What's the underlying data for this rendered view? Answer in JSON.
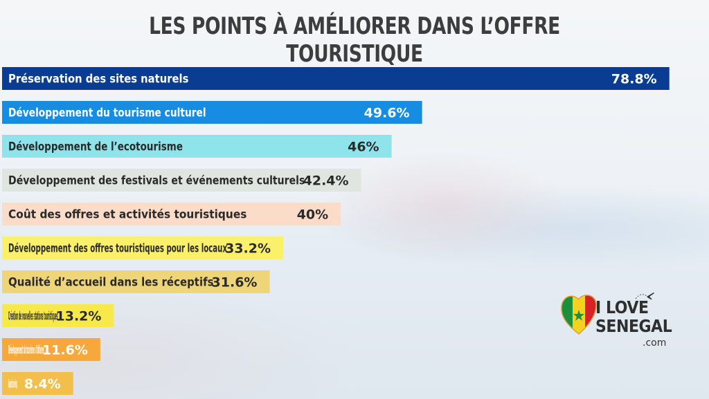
{
  "chart_data": {
    "type": "bar",
    "orientation": "horizontal",
    "title": "LES POINTS À AMÉLIORER DANS L’OFFRE TOURISTIQUE",
    "unit": "%",
    "xlim": [
      0,
      100
    ],
    "bars": [
      {
        "label": "Préservation des sites naturels",
        "value": 78.8,
        "display": "78.8%",
        "color": "#0a3d91",
        "text_color": "#ffffff"
      },
      {
        "label": "Développement du tourisme culturel",
        "value": 49.6,
        "display": "49.6%",
        "color": "#168de3",
        "text_color": "#ffffff"
      },
      {
        "label": "Développement de l’ecotourisme",
        "value": 46,
        "display": "46%",
        "color": "#8fe3ea",
        "text_color": "#2a2a2a"
      },
      {
        "label": "Développement des festivals et événements culturels",
        "value": 42.4,
        "display": "42.4%",
        "color": "#e0e6df",
        "text_color": "#2a2a2a"
      },
      {
        "label": "Coût des offres et activités touristiques",
        "value": 40,
        "display": "40%",
        "color": "#fbdcc8",
        "text_color": "#2a2a2a"
      },
      {
        "label": "Développement des offres touristiques pour les locaux",
        "value": 33.2,
        "display": "33.2%",
        "color": "#fbf06a",
        "text_color": "#2a2a2a"
      },
      {
        "label": "Qualité d’accueil dans les réceptifs",
        "value": 31.6,
        "display": "31.6%",
        "color": "#efd57a",
        "text_color": "#2a2a2a"
      },
      {
        "label": "Création de nouvelles stations touristiques",
        "value": 13.2,
        "display": "13.2%",
        "color": "#f7e94a",
        "text_color": "#2a2a2a"
      },
      {
        "label": "Développement du tourisme d’affaires",
        "value": 11.6,
        "display": "11.6%",
        "color": "#f6a93a",
        "text_color": "#ffffff"
      },
      {
        "label": "Développement du tourisme religeux",
        "value": 8.4,
        "display": "8.4%",
        "color": "#f2c04a",
        "text_color": "#ffffff"
      }
    ]
  },
  "logo": {
    "line1": "I LOVE",
    "line2": "SENEGAL",
    "suffix": ".com",
    "icon": "heart-senegal-flag-icon",
    "plane_icon": "airplane-icon"
  }
}
